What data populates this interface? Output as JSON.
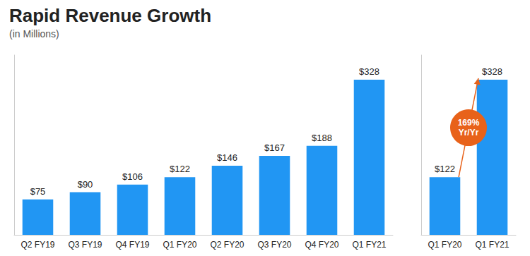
{
  "chart_data": [
    {
      "type": "bar",
      "title": "Rapid Revenue Growth",
      "subtitle": "(in Millions)",
      "categories": [
        "Q2 FY19",
        "Q3 FY19",
        "Q4 FY19",
        "Q1 FY20",
        "Q2 FY20",
        "Q3 FY20",
        "Q4 FY20",
        "Q1 FY21"
      ],
      "values": [
        75,
        90,
        106,
        122,
        146,
        167,
        188,
        328
      ],
      "value_labels": [
        "$75",
        "$90",
        "$106",
        "$122",
        "$146",
        "$167",
        "$188",
        "$328"
      ],
      "color": "#2196F3",
      "ylim": [
        0,
        380
      ],
      "data_labels": true,
      "tick_labels": "x",
      "grid": false
    },
    {
      "type": "bar",
      "categories": [
        "Q1 FY20",
        "Q1 FY21"
      ],
      "values": [
        122,
        328
      ],
      "value_labels": [
        "$122",
        "$328"
      ],
      "color": "#2196F3",
      "ylim": [
        0,
        380
      ],
      "data_labels": true,
      "tick_labels": "x",
      "grid": false,
      "annotations": [
        {
          "text": "169%\nYr/Yr",
          "color": "#E8621A"
        }
      ]
    }
  ]
}
